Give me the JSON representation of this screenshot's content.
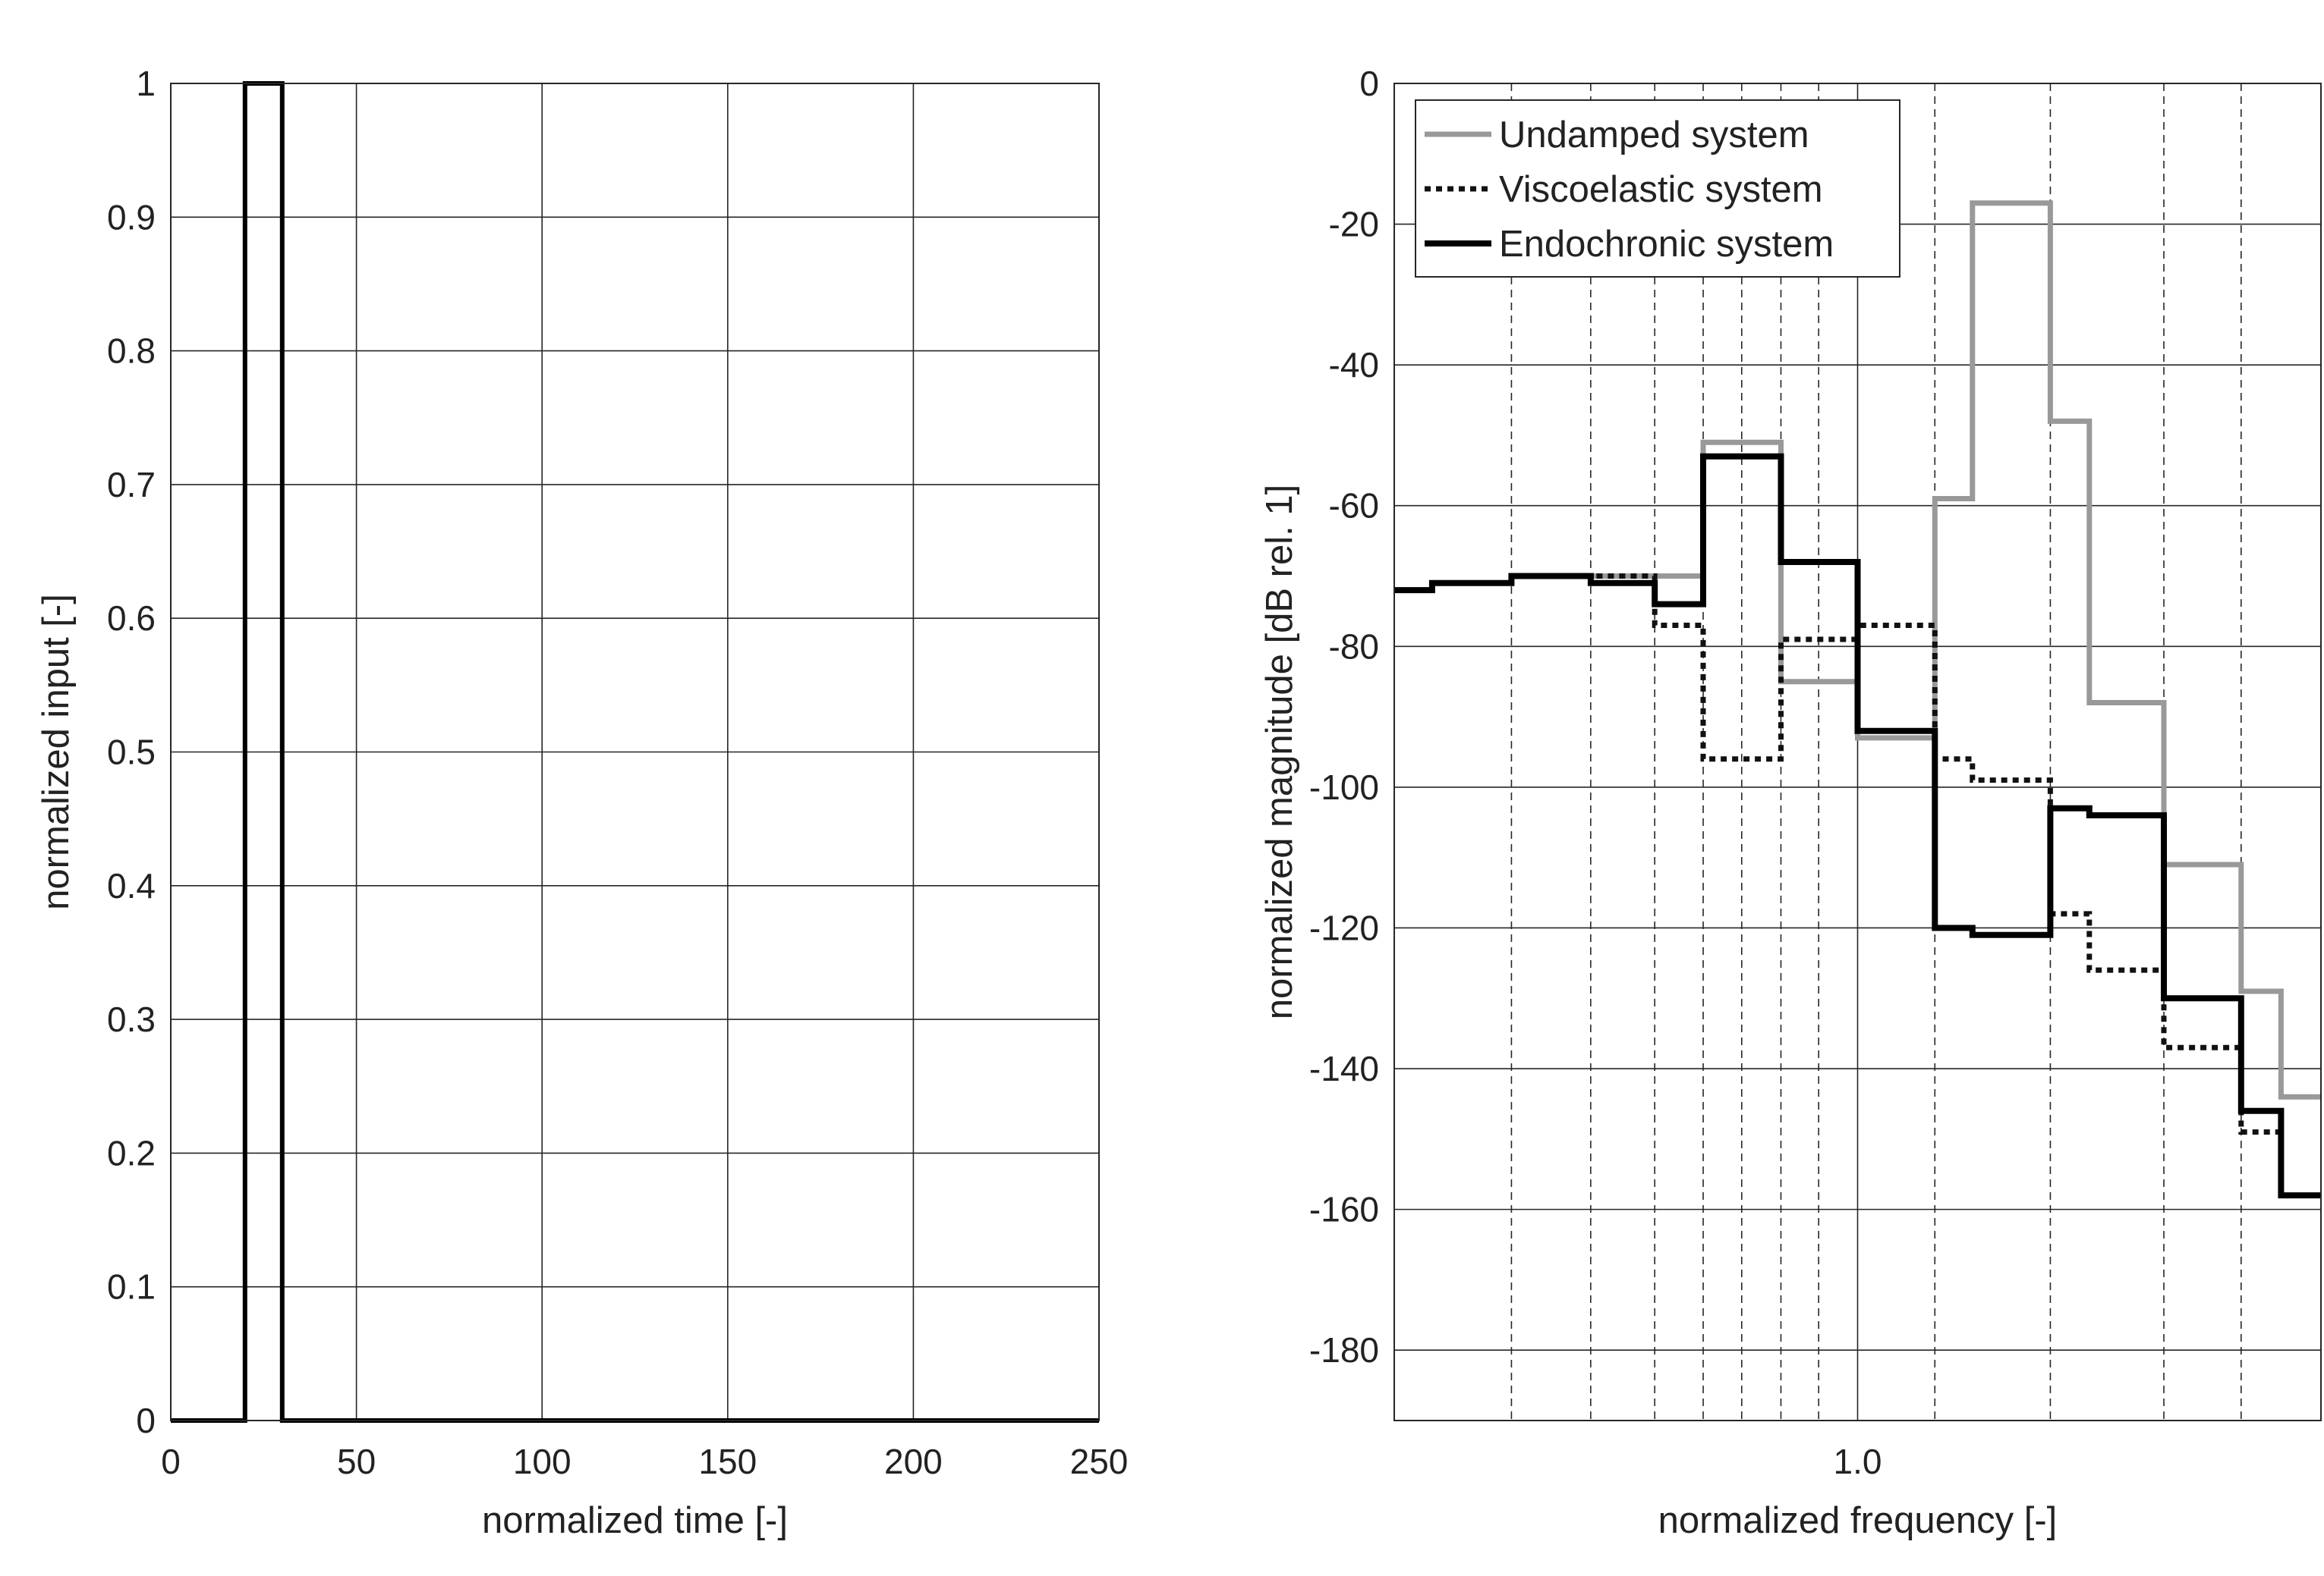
{
  "chart_data": [
    {
      "type": "line",
      "xlabel": "normalized time [-]",
      "ylabel": "normalized input [-]",
      "xlim": [
        0,
        250
      ],
      "ylim": [
        0,
        1
      ],
      "xticks": [
        0,
        50,
        100,
        150,
        200,
        250
      ],
      "xtick_labels": [
        "0",
        "50",
        "100",
        "150",
        "200",
        "250"
      ],
      "yticks": [
        0,
        0.1,
        0.2,
        0.3,
        0.4,
        0.5,
        0.6,
        0.7,
        0.8,
        0.9,
        1
      ],
      "ytick_labels": [
        "0",
        "0.1",
        "0.2",
        "0.3",
        "0.4",
        "0.5",
        "0.6",
        "0.7",
        "0.8",
        "0.9",
        "1"
      ],
      "grid": true,
      "series": [
        {
          "color": "#000000",
          "style": "solid",
          "x": [
            0,
            20,
            20,
            30,
            30,
            250
          ],
          "y": [
            0,
            0,
            1,
            1,
            0,
            0
          ]
        }
      ]
    },
    {
      "type": "line",
      "step": true,
      "xscale": "log",
      "xlabel": "normalized frequency [-]",
      "ylabel": "normalized magnitude [dB rel. 1]",
      "xlim": [
        0.25,
        4.0
      ],
      "ylim": [
        -190,
        0
      ],
      "xticks": [
        1.0
      ],
      "xtick_labels": [
        "1.0"
      ],
      "x_dashed_gridlines": [
        0.355,
        0.45,
        0.545,
        0.63,
        0.707,
        0.795,
        0.89,
        1.26,
        1.78,
        2.5,
        3.15
      ],
      "yticks": [
        0,
        -20,
        -40,
        -60,
        -80,
        -100,
        -120,
        -140,
        -160,
        -180
      ],
      "ytick_labels": [
        "0",
        "-20",
        "-40",
        "-60",
        "-80",
        "-100",
        "-120",
        "-140",
        "-160",
        "-180"
      ],
      "grid": true,
      "legend_position": "top-left",
      "band_edges": [
        0.25,
        0.28,
        0.355,
        0.45,
        0.545,
        0.63,
        0.707,
        0.795,
        1.0,
        1.26,
        1.41,
        1.78,
        2.0,
        2.5,
        3.15,
        3.55,
        4.0
      ],
      "series": [
        {
          "name": "Undamped system",
          "color": "#999999",
          "style": "solid",
          "values": [
            -72,
            -71,
            -70,
            -70,
            -70,
            -51,
            -51,
            -85,
            -93,
            -59,
            -17,
            -48,
            -88,
            -111,
            -129,
            -144
          ]
        },
        {
          "name": "Viscoelastic system",
          "color": "#111111",
          "style": "dotted",
          "values": [
            -72,
            -71,
            -70,
            -70,
            -77,
            -96,
            -96,
            -79,
            -77,
            -96,
            -99,
            -118,
            -126,
            -137,
            -149,
            -158
          ]
        },
        {
          "name": "Endochronic system",
          "color": "#000000",
          "style": "solid",
          "values": [
            -72,
            -71,
            -70,
            -71,
            -74,
            -53,
            -53,
            -68,
            -92,
            -120,
            -121,
            -103,
            -104,
            -130,
            -146,
            -158
          ]
        }
      ]
    }
  ]
}
